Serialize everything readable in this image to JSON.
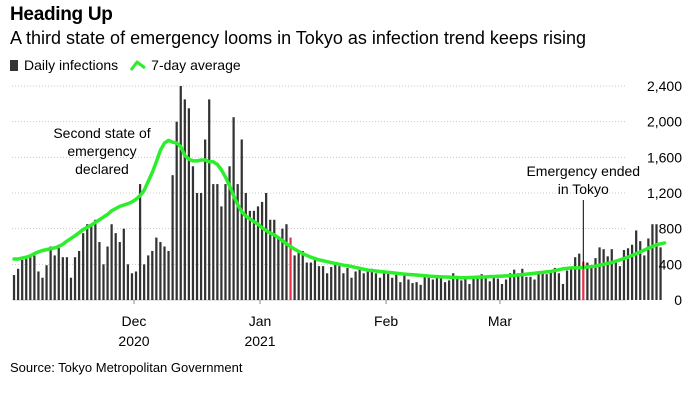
{
  "title": "Heading Up",
  "subtitle": "A third state of emergency looms in Tokyo as infection trend keeps rising",
  "source": "Source: Tokyo Metropolitan Government",
  "colors": {
    "bars": "#333333",
    "emergency_bars": "#e8304a",
    "average": "#2bef2b",
    "grid": "#c8c8c8"
  },
  "chart_data": {
    "type": "bar",
    "x_start": "2020-11-01",
    "x_end": "2021-04-01",
    "ylim": [
      0,
      2400
    ],
    "yticks": [
      0,
      400,
      800,
      1200,
      1600,
      2000,
      2400
    ],
    "ytick_labels": [
      "0",
      "400",
      "800",
      "1,200",
      "1,600",
      "2,000",
      "2,400"
    ],
    "x_axis_labels": [
      {
        "date": "2020-12-01",
        "label": "Dec",
        "year": "2020"
      },
      {
        "date": "2021-01-01",
        "label": "Jan",
        "year": "2021"
      },
      {
        "date": "2021-02-01",
        "label": "Feb",
        "year": ""
      },
      {
        "date": "2021-03-01",
        "label": "Mar",
        "year": ""
      }
    ],
    "legend": {
      "bars": "Daily infections",
      "line": "7-day average"
    },
    "series": [
      {
        "name": "Daily infections",
        "start_date": "2020-11-01",
        "values": [
          280,
          350,
          450,
          480,
          480,
          500,
          320,
          250,
          390,
          600,
          500,
          620,
          480,
          480,
          250,
          480,
          550,
          750,
          850,
          850,
          900,
          650,
          400,
          600,
          850,
          750,
          650,
          800,
          400,
          300,
          320,
          1300,
          400,
          500,
          550,
          700,
          650,
          600,
          550,
          1400,
          2000,
          2400,
          2250,
          2150,
          1500,
          1200,
          1200,
          1800,
          2250,
          1300,
          1300,
          1050,
          1300,
          1500,
          2050,
          1300,
          1800,
          1200,
          1000,
          1000,
          1050,
          1100,
          1200,
          900,
          900,
          700,
          800,
          850,
          700,
          500,
          550,
          550,
          420,
          420,
          450,
          380,
          380,
          300,
          370,
          420,
          380,
          300,
          360,
          250,
          320,
          360,
          300,
          320,
          350,
          300,
          250,
          300,
          300,
          250,
          280,
          200,
          280,
          230,
          190,
          200,
          170,
          280,
          250,
          230,
          250,
          250,
          200,
          220,
          300,
          270,
          220,
          230,
          180,
          250,
          240,
          290,
          270,
          210,
          270,
          240,
          180,
          230,
          300,
          340,
          300,
          350,
          260,
          260,
          230,
          320,
          300,
          290,
          310,
          360,
          300,
          180,
          330,
          350,
          480,
          520,
          430,
          420,
          370,
          470,
          590,
          570,
          490,
          570,
          420,
          380,
          560,
          580,
          620,
          780,
          660,
          500,
          690,
          850,
          850,
          590
        ]
      },
      {
        "name": "7-day average",
        "start_date": "2020-11-01",
        "values": [
          460,
          460,
          470,
          480,
          495,
          520,
          540,
          555,
          565,
          575,
          585,
          600,
          625,
          660,
          690,
          720,
          755,
          790,
          815,
          840,
          870,
          900,
          930,
          960,
          1000,
          1025,
          1050,
          1065,
          1080,
          1100,
          1130,
          1170,
          1230,
          1330,
          1430,
          1550,
          1680,
          1760,
          1790,
          1770,
          1760,
          1720,
          1620,
          1580,
          1560,
          1560,
          1570,
          1570,
          1550,
          1550,
          1520,
          1460,
          1380,
          1280,
          1170,
          1070,
          990,
          940,
          910,
          880,
          850,
          810,
          780,
          750,
          730,
          700,
          665,
          630,
          600,
          570,
          545,
          520,
          500,
          480,
          465,
          450,
          440,
          430,
          420,
          410,
          400,
          390,
          385,
          375,
          365,
          355,
          345,
          335,
          330,
          325,
          320,
          315,
          310,
          305,
          300,
          295,
          290,
          286,
          283,
          280,
          276,
          272,
          268,
          265,
          262,
          260,
          258,
          256,
          254,
          252,
          250,
          250,
          252,
          254,
          256,
          258,
          260,
          262,
          264,
          266,
          268,
          270,
          272,
          275,
          280,
          285,
          290,
          295,
          300,
          305,
          310,
          315,
          320,
          330,
          340,
          350,
          355,
          360,
          360,
          362,
          365,
          370,
          375,
          380,
          390,
          400,
          410,
          420,
          435,
          450,
          465,
          480,
          500,
          520,
          540,
          560,
          580,
          600,
          620,
          630,
          640
        ]
      }
    ],
    "highlighted_periods": [
      {
        "start": "2021-01-08",
        "end": "2021-01-08"
      },
      {
        "start": "2021-03-21",
        "end": "2021-03-21"
      }
    ],
    "annotations": [
      {
        "lines": [
          "Second state of",
          "emergency",
          "declared"
        ],
        "date": "2021-01-08"
      },
      {
        "lines": [
          "Emergency ended",
          "in Tokyo"
        ],
        "date": "2021-03-21"
      }
    ]
  }
}
